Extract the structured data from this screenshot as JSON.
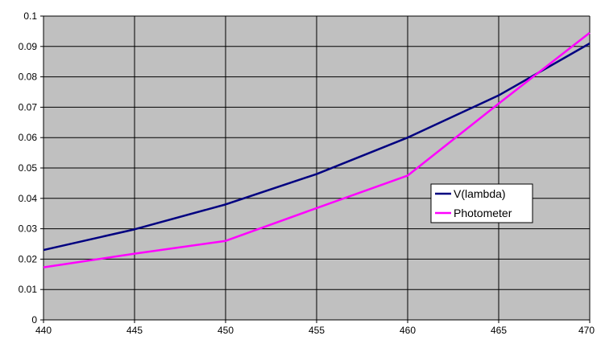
{
  "chart_data": {
    "type": "line",
    "title": "",
    "xlabel": "",
    "ylabel": "",
    "x": [
      440,
      445,
      450,
      455,
      460,
      465,
      470
    ],
    "xlim": [
      440,
      470
    ],
    "ylim": [
      0,
      0.1
    ],
    "x_ticks": [
      "440",
      "445",
      "450",
      "455",
      "460",
      "465",
      "470"
    ],
    "y_ticks": [
      "0",
      "0.01",
      "0.02",
      "0.03",
      "0.04",
      "0.05",
      "0.06",
      "0.07",
      "0.08",
      "0.09",
      "0.1"
    ],
    "grid": true,
    "plot_background": "#c0c0c0",
    "legend_position": "right-center",
    "series": [
      {
        "name": "V(lambda)",
        "color": "#000080",
        "values": [
          0.023,
          0.0298,
          0.038,
          0.048,
          0.06,
          0.0739,
          0.091
        ]
      },
      {
        "name": "Photometer",
        "color": "#ff00ff",
        "values": [
          0.0173,
          0.0218,
          0.026,
          0.0368,
          0.0475,
          0.0712,
          0.0945
        ]
      }
    ]
  }
}
